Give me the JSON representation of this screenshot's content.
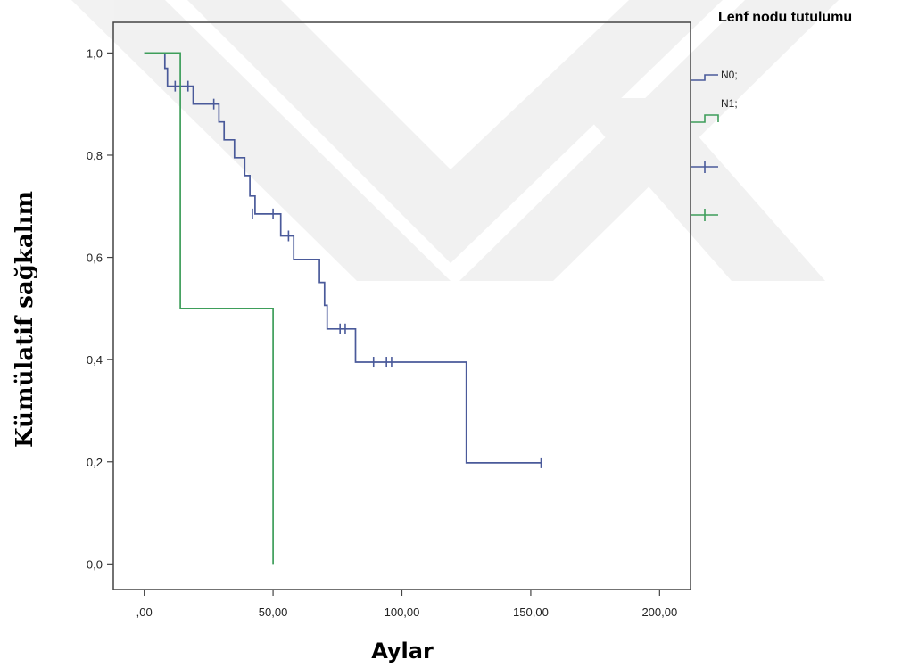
{
  "chart_data": {
    "type": "line",
    "step": true,
    "xlabel": "Aylar",
    "ylabel": "Kümülatif sağkalım",
    "xlim": [
      -12,
      212
    ],
    "ylim": [
      -0.05,
      1.06
    ],
    "x_ticks": [
      0,
      50,
      100,
      150,
      200
    ],
    "x_tick_labels": [
      ",00",
      "50,00",
      "100,00",
      "150,00",
      "200,00"
    ],
    "y_ticks": [
      0,
      0.2,
      0.4,
      0.6,
      0.8,
      1.0
    ],
    "y_tick_labels": [
      "0,0",
      "0,2",
      "0,4",
      "0,6",
      "0,8",
      "1,0"
    ],
    "grid": false,
    "legend": {
      "title": "Lenf nodu tutulumu",
      "placement": "right",
      "entries": [
        {
          "label": "N0;",
          "color": "#4a5a9a"
        },
        {
          "label": "N1;",
          "color": "#3e9e5a"
        },
        {
          "label": "",
          "color": "#4a5a9a",
          "marker": "censor"
        },
        {
          "label": "",
          "color": "#3e9e5a",
          "marker": "censor"
        }
      ]
    },
    "series": [
      {
        "name": "N0;",
        "color": "#4a5a9a",
        "points": [
          [
            0,
            1.0
          ],
          [
            8,
            1.0
          ],
          [
            8,
            0.97
          ],
          [
            9,
            0.97
          ],
          [
            9,
            0.935
          ],
          [
            19,
            0.935
          ],
          [
            19,
            0.9
          ],
          [
            29,
            0.9
          ],
          [
            29,
            0.865
          ],
          [
            31,
            0.865
          ],
          [
            31,
            0.83
          ],
          [
            35,
            0.83
          ],
          [
            35,
            0.795
          ],
          [
            39,
            0.795
          ],
          [
            39,
            0.76
          ],
          [
            41,
            0.76
          ],
          [
            41,
            0.72
          ],
          [
            43,
            0.72
          ],
          [
            43,
            0.685
          ],
          [
            53,
            0.685
          ],
          [
            53,
            0.642
          ],
          [
            58,
            0.642
          ],
          [
            58,
            0.596
          ],
          [
            68,
            0.596
          ],
          [
            68,
            0.551
          ],
          [
            70,
            0.551
          ],
          [
            70,
            0.506
          ],
          [
            71,
            0.506
          ],
          [
            71,
            0.46
          ],
          [
            82,
            0.46
          ],
          [
            82,
            0.395
          ],
          [
            125,
            0.395
          ],
          [
            125,
            0.198
          ],
          [
            154,
            0.198
          ]
        ],
        "censored": [
          [
            12,
            0.935
          ],
          [
            17,
            0.935
          ],
          [
            27,
            0.9
          ],
          [
            42,
            0.685
          ],
          [
            50,
            0.685
          ],
          [
            56,
            0.642
          ],
          [
            76,
            0.46
          ],
          [
            78,
            0.46
          ],
          [
            89,
            0.395
          ],
          [
            94,
            0.395
          ],
          [
            96,
            0.395
          ],
          [
            154,
            0.198
          ]
        ]
      },
      {
        "name": "N1;",
        "color": "#3e9e5a",
        "points": [
          [
            0,
            1.0
          ],
          [
            14,
            1.0
          ],
          [
            14,
            0.5
          ],
          [
            50,
            0.5
          ],
          [
            50,
            0.0
          ]
        ],
        "censored": []
      }
    ]
  }
}
